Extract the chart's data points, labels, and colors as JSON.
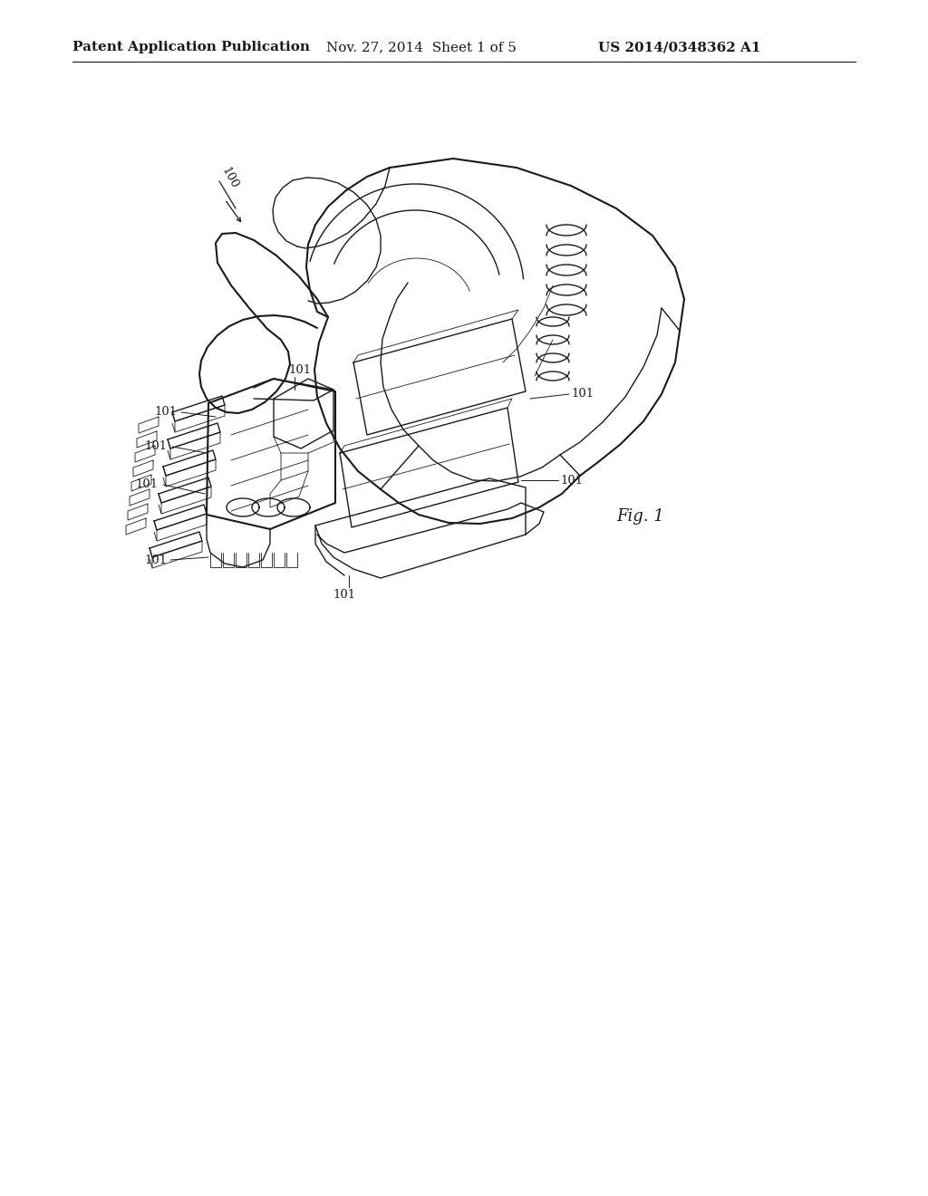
{
  "background_color": "#ffffff",
  "line_color": "#1a1a1a",
  "header_left": "Patent Application Publication",
  "header_center": "Nov. 27, 2014  Sheet 1 of 5",
  "header_right": "US 2014/0348362 A1",
  "fig_label": "Fig. 1",
  "ref_main": "100",
  "ref_detail": "101",
  "lw_heavy": 1.5,
  "lw_med": 1.0,
  "lw_thin": 0.6,
  "header_fontsize": 11,
  "label_fontsize": 9.5,
  "fig_fontsize": 13
}
